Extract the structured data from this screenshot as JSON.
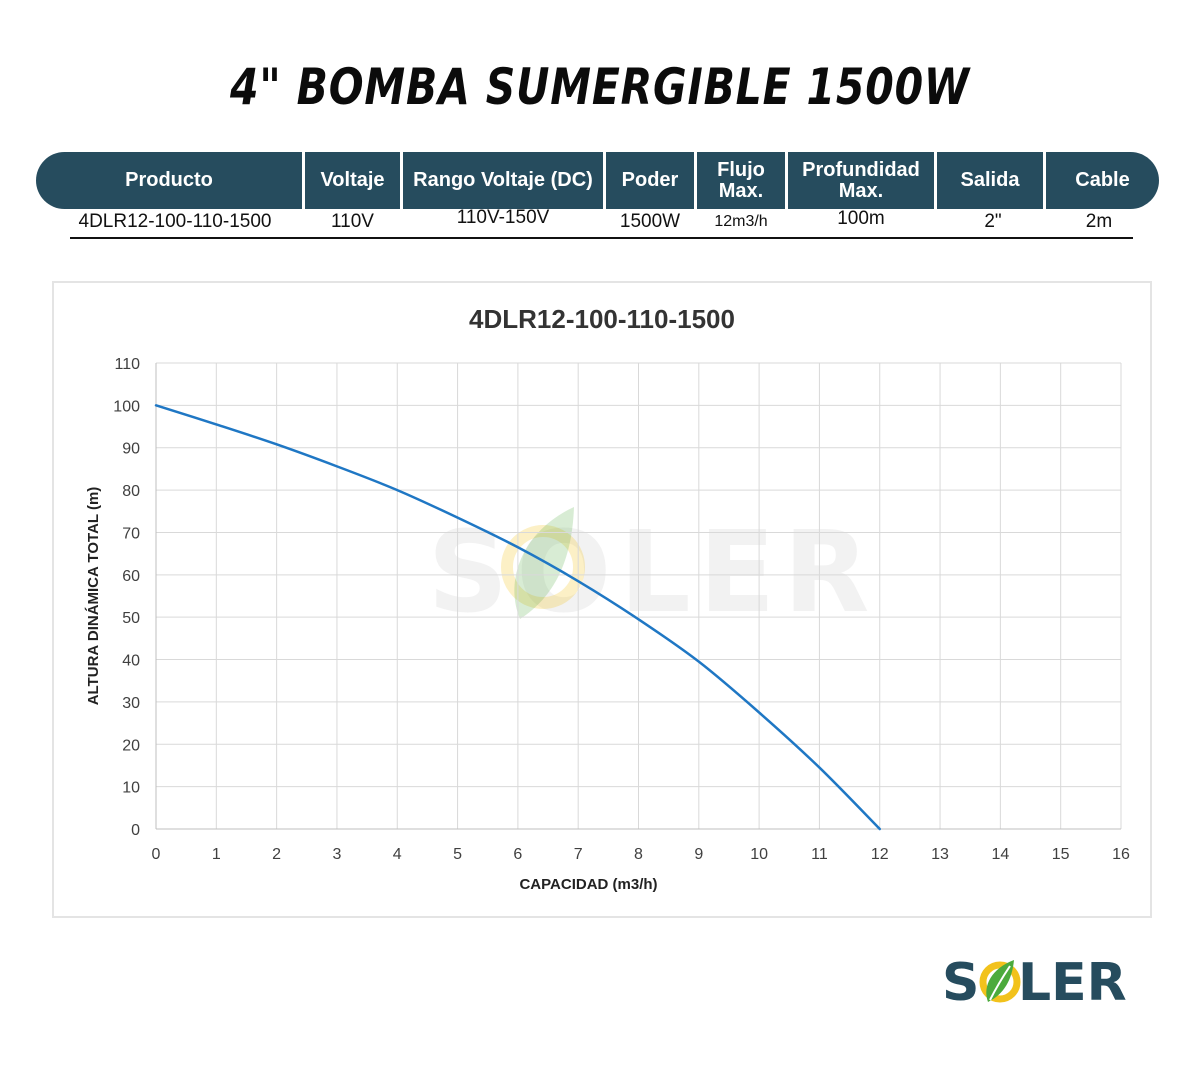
{
  "header": {
    "title": "4\" BOMBA SUMERGIBLE 1500W"
  },
  "spec_table": {
    "columns": [
      "Producto",
      "Voltaje",
      "Rango Voltaje (DC)",
      "Poder",
      "Flujo\nMax.",
      "Profundidad\nMax.",
      "Salida",
      "Cable"
    ],
    "row": [
      "4DLR12-100-110-1500",
      "110V",
      "110V-150V",
      "1500W",
      "12m3/h",
      "100m",
      "2\"",
      "2m"
    ]
  },
  "brand": {
    "logo_text": "SOLER",
    "colors": {
      "primary": "#264c5e",
      "leaf_green": "#4caa3c",
      "leaf_yellow": "#f2c21c"
    }
  },
  "chart_data": {
    "type": "line",
    "title": "4DLR12-100-110-1500",
    "xlabel": "CAPACIDAD (m3/h)",
    "ylabel": "ALTURA DINÁMICA TOTAL (m)",
    "xlim": [
      0,
      16
    ],
    "ylim": [
      0,
      110
    ],
    "xticks": [
      0,
      1,
      2,
      3,
      4,
      5,
      6,
      7,
      8,
      9,
      10,
      11,
      12,
      13,
      14,
      15,
      16
    ],
    "yticks": [
      0,
      10,
      20,
      30,
      40,
      50,
      60,
      70,
      80,
      90,
      100,
      110
    ],
    "grid": true,
    "legend": "none",
    "watermark": "SOLER",
    "series": [
      {
        "color": "#1f77c4",
        "x": [
          0,
          1,
          2,
          3,
          4,
          5,
          6,
          7,
          8,
          9,
          10,
          11,
          12
        ],
        "y": [
          100,
          95.5,
          90.8,
          85.6,
          80,
          73.5,
          66.5,
          58.5,
          49.5,
          39.5,
          27.5,
          14.5,
          0
        ]
      }
    ]
  }
}
